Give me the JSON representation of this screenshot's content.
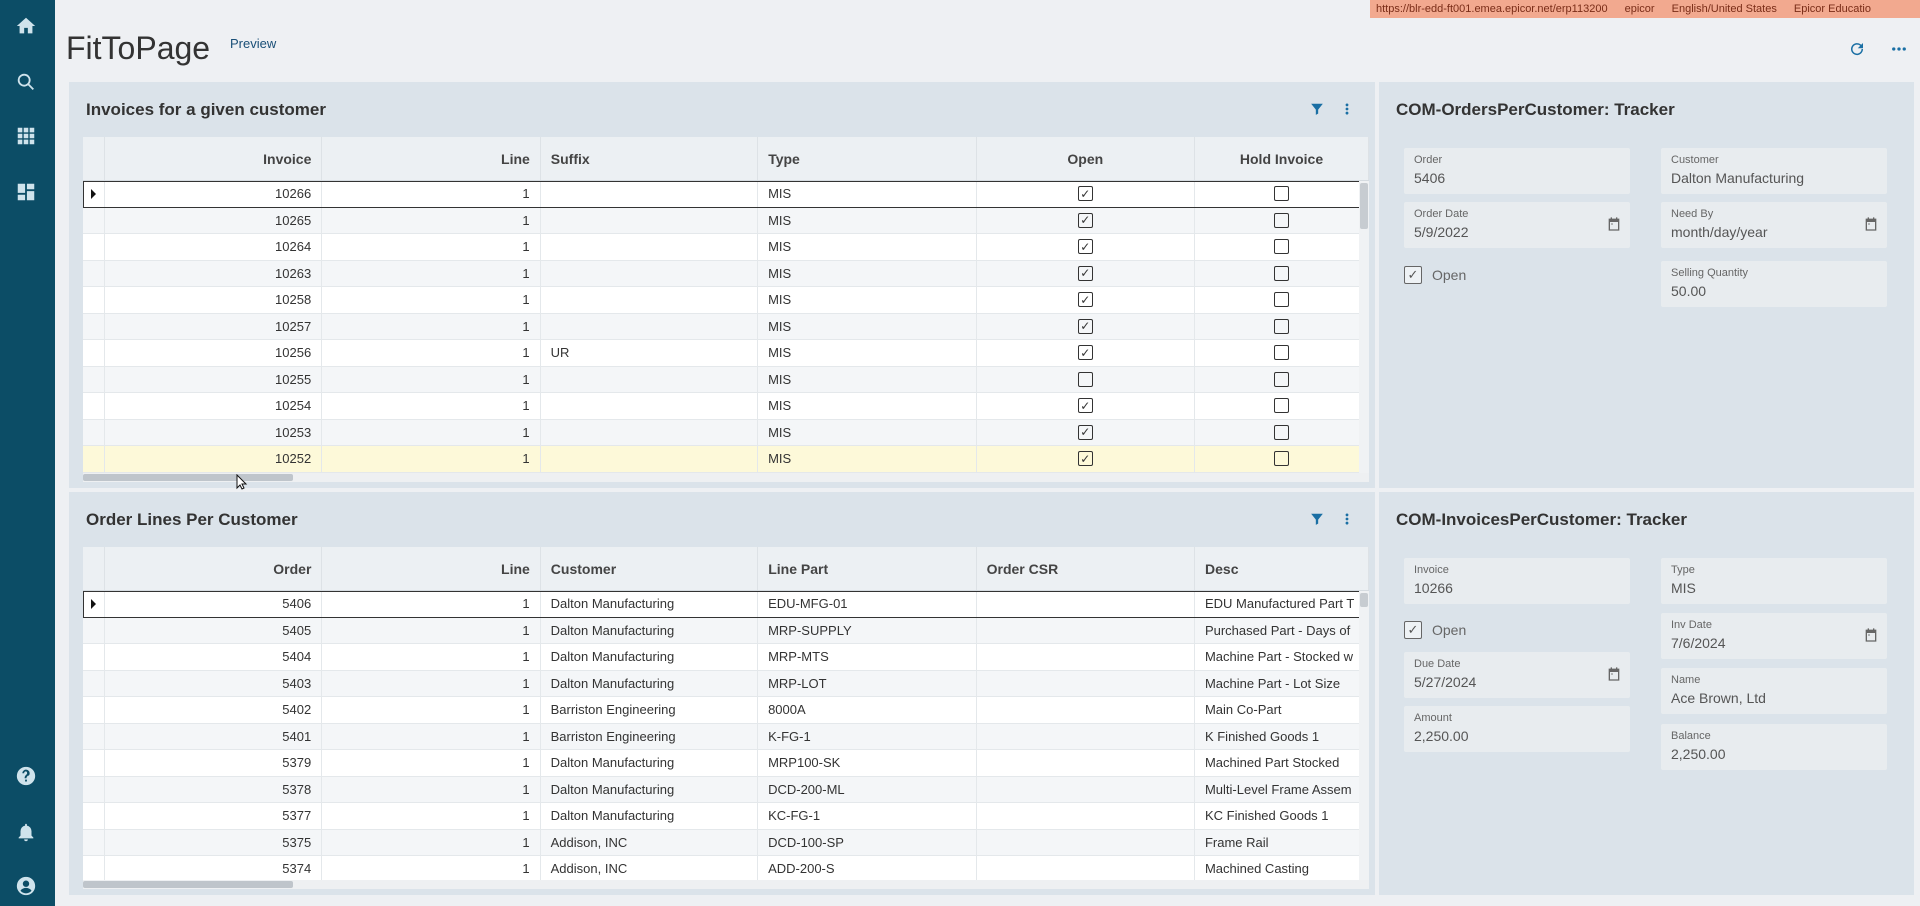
{
  "url_bar": {
    "url": "https://blr-edd-ft001.emea.epicor.net/erp113200",
    "company": "epicor",
    "language": "English/United States",
    "site": "Epicor Educatio"
  },
  "page": {
    "title": "FitToPage",
    "tag": "Preview"
  },
  "nav_icons": [
    "home-icon",
    "search-icon",
    "apps-grid-icon",
    "dashboard-icon",
    "help-icon",
    "bell-icon",
    "user-icon"
  ],
  "invoices_grid": {
    "title": "Invoices for a given customer",
    "columns": [
      "Invoice",
      "Line",
      "Suffix",
      "Type",
      "Open",
      "Hold Invoice"
    ],
    "rows": [
      {
        "invoice": "10266",
        "line": "1",
        "suffix": "",
        "type": "MIS",
        "open": true,
        "hold": false
      },
      {
        "invoice": "10265",
        "line": "1",
        "suffix": "",
        "type": "MIS",
        "open": true,
        "hold": false
      },
      {
        "invoice": "10264",
        "line": "1",
        "suffix": "",
        "type": "MIS",
        "open": true,
        "hold": false
      },
      {
        "invoice": "10263",
        "line": "1",
        "suffix": "",
        "type": "MIS",
        "open": true,
        "hold": false
      },
      {
        "invoice": "10258",
        "line": "1",
        "suffix": "",
        "type": "MIS",
        "open": true,
        "hold": false
      },
      {
        "invoice": "10257",
        "line": "1",
        "suffix": "",
        "type": "MIS",
        "open": true,
        "hold": false
      },
      {
        "invoice": "10256",
        "line": "1",
        "suffix": "UR",
        "type": "MIS",
        "open": true,
        "hold": false
      },
      {
        "invoice": "10255",
        "line": "1",
        "suffix": "",
        "type": "MIS",
        "open": false,
        "hold": false
      },
      {
        "invoice": "10254",
        "line": "1",
        "suffix": "",
        "type": "MIS",
        "open": true,
        "hold": false
      },
      {
        "invoice": "10253",
        "line": "1",
        "suffix": "",
        "type": "MIS",
        "open": true,
        "hold": false
      },
      {
        "invoice": "10252",
        "line": "1",
        "suffix": "",
        "type": "MIS",
        "open": true,
        "hold": false
      }
    ]
  },
  "orders_grid": {
    "title": "Order Lines Per Customer",
    "columns": [
      "Order",
      "Line",
      "Customer",
      "Line Part",
      "Order CSR",
      "Desc"
    ],
    "rows": [
      {
        "order": "5406",
        "line": "1",
        "customer": "Dalton Manufacturing",
        "part": "EDU-MFG-01",
        "csr": "",
        "desc": "EDU Manufactured Part T"
      },
      {
        "order": "5405",
        "line": "1",
        "customer": "Dalton Manufacturing",
        "part": "MRP-SUPPLY",
        "csr": "",
        "desc": "Purchased Part - Days of"
      },
      {
        "order": "5404",
        "line": "1",
        "customer": "Dalton Manufacturing",
        "part": "MRP-MTS",
        "csr": "",
        "desc": "Machine Part - Stocked w"
      },
      {
        "order": "5403",
        "line": "1",
        "customer": "Dalton Manufacturing",
        "part": "MRP-LOT",
        "csr": "",
        "desc": "Machine Part - Lot Size"
      },
      {
        "order": "5402",
        "line": "1",
        "customer": "Barriston Engineering",
        "part": "8000A",
        "csr": "",
        "desc": "Main Co-Part"
      },
      {
        "order": "5401",
        "line": "1",
        "customer": "Barriston Engineering",
        "part": "K-FG-1",
        "csr": "",
        "desc": "K Finished Goods 1"
      },
      {
        "order": "5379",
        "line": "1",
        "customer": "Dalton Manufacturing",
        "part": "MRP100-SK",
        "csr": "",
        "desc": "Machined Part Stocked"
      },
      {
        "order": "5378",
        "line": "1",
        "customer": "Dalton Manufacturing",
        "part": "DCD-200-ML",
        "csr": "",
        "desc": "Multi-Level Frame Assem"
      },
      {
        "order": "5377",
        "line": "1",
        "customer": "Dalton Manufacturing",
        "part": "KC-FG-1",
        "csr": "",
        "desc": "KC Finished Goods 1"
      },
      {
        "order": "5375",
        "line": "1",
        "customer": "Addison, INC",
        "part": "DCD-100-SP",
        "csr": "",
        "desc": "Frame Rail"
      },
      {
        "order": "5374",
        "line": "1",
        "customer": "Addison, INC",
        "part": "ADD-200-S",
        "csr": "",
        "desc": "Machined Casting"
      }
    ]
  },
  "orders_tracker": {
    "title": "COM-OrdersPerCustomer: Tracker",
    "order_label": "Order",
    "order_value": "5406",
    "customer_label": "Customer",
    "customer_value": "Dalton Manufacturing",
    "order_date_label": "Order Date",
    "order_date_value": "5/9/2022",
    "need_by_label": "Need By",
    "need_by_value": "month/day/year",
    "open_label": "Open",
    "open_checked": true,
    "qty_label": "Selling Quantity",
    "qty_value": "50.00"
  },
  "invoices_tracker": {
    "title": "COM-InvoicesPerCustomer: Tracker",
    "invoice_label": "Invoice",
    "invoice_value": "10266",
    "type_label": "Type",
    "type_value": "MIS",
    "open_label": "Open",
    "open_checked": true,
    "inv_date_label": "Inv Date",
    "inv_date_value": "7/6/2024",
    "due_date_label": "Due Date",
    "due_date_value": "5/27/2024",
    "name_label": "Name",
    "name_value": "Ace Brown, Ltd",
    "amount_label": "Amount",
    "amount_value": "2,250.00",
    "balance_label": "Balance",
    "balance_value": "2,250.00"
  },
  "colors": {
    "rail": "#0c4d66",
    "accent": "#1a6fa4",
    "panel": "#dbe3ea",
    "highlight_row": "#fdf9d9"
  }
}
